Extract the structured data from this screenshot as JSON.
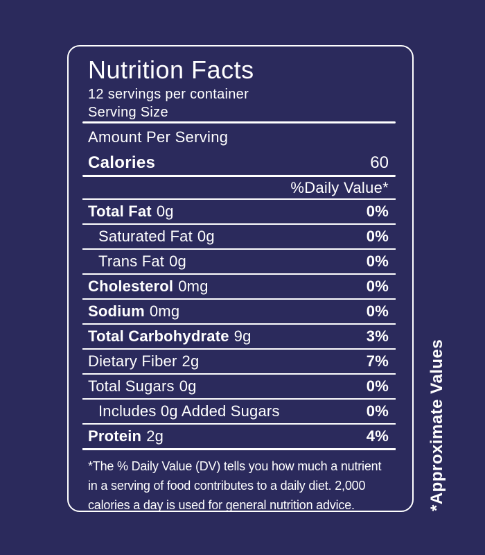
{
  "colors": {
    "background": "#2b2a5c",
    "foreground": "#ffffff"
  },
  "label": {
    "title": "Nutrition Facts",
    "servings_per_container": "12 servings per container",
    "serving_size": "Serving Size",
    "amount_per_serving": "Amount Per Serving",
    "calories": {
      "name": "Calories",
      "value": "60"
    },
    "daily_value_header": "%Daily Value*",
    "rows": [
      {
        "name": "Total Fat",
        "amount": "0g",
        "percent": "0%"
      },
      {
        "name": "Saturated Fat",
        "amount": "0g",
        "percent": "0%"
      },
      {
        "name": "Trans Fat",
        "amount": "0g",
        "percent": "0%"
      },
      {
        "name": "Cholesterol",
        "amount": "0mg",
        "percent": "0%"
      },
      {
        "name": "Sodium",
        "amount": "0mg",
        "percent": "0%"
      },
      {
        "name": "Total Carbohydrate",
        "amount": "9g",
        "percent": "3%"
      },
      {
        "name": "Dietary Fiber",
        "amount": "2g",
        "percent": "7%"
      },
      {
        "name": "Total Sugars",
        "amount": "0g",
        "percent": "0%"
      },
      {
        "name": "Includes 0g Added Sugars",
        "amount": "",
        "percent": "0%"
      },
      {
        "name": "Protein",
        "amount": "2g",
        "percent": "4%"
      }
    ],
    "footnote": "*The % Daily Value (DV) tells you how much a nutrient in a serving of food contributes to a daily diet. 2,000 calories a day is used for general nutrition advice.",
    "side_note": "*Approximate Values"
  }
}
